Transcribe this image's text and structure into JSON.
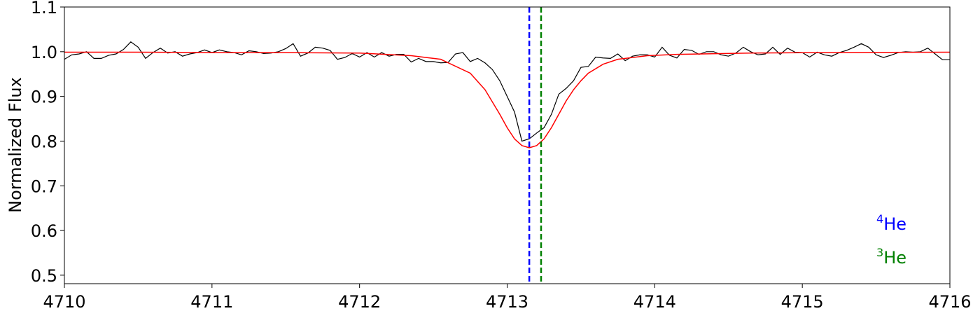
{
  "chart_data": {
    "type": "line",
    "ylabel": "Normalized Flux",
    "xlim": [
      4710,
      4716
    ],
    "ylim": [
      0.481,
      1.1
    ],
    "xticks": [
      4710,
      4711,
      4712,
      4713,
      4714,
      4715,
      4716
    ],
    "yticks": [
      0.5,
      0.6,
      0.7,
      0.8,
      0.9,
      {
        "value": 1,
        "label": "1.0"
      },
      1.1
    ],
    "series": [
      {
        "color": "#000000",
        "x": [
          4710,
          4710.05,
          4710.1,
          4710.15,
          4710.2,
          4710.25,
          4710.3,
          4710.35,
          4710.4,
          4710.45,
          4710.5,
          4710.55,
          4710.6,
          4710.65,
          4710.7,
          4710.75,
          4710.8,
          4710.85,
          4710.9,
          4710.95,
          4711,
          4711.05,
          4711.1,
          4711.15,
          4711.2,
          4711.25,
          4711.3,
          4711.35,
          4711.4,
          4711.45,
          4711.5,
          4711.55,
          4711.6,
          4711.65,
          4711.7,
          4711.75,
          4711.8,
          4711.85,
          4711.9,
          4711.95,
          4712,
          4712.05,
          4712.1,
          4712.15,
          4712.2,
          4712.25,
          4712.3,
          4712.35,
          4712.4,
          4712.45,
          4712.5,
          4712.55,
          4712.6,
          4712.65,
          4712.7,
          4712.75,
          4712.8,
          4712.85,
          4712.9,
          4712.95,
          4713,
          4713.05,
          4713.1,
          4713.15,
          4713.2,
          4713.25,
          4713.3,
          4713.35,
          4713.4,
          4713.45,
          4713.5,
          4713.55,
          4713.6,
          4713.65,
          4713.7,
          4713.75,
          4713.8,
          4713.85,
          4713.9,
          4713.95,
          4714,
          4714.05,
          4714.1,
          4714.15,
          4714.2,
          4714.25,
          4714.3,
          4714.35,
          4714.4,
          4714.45,
          4714.5,
          4714.55,
          4714.6,
          4714.65,
          4714.7,
          4714.75,
          4714.8,
          4714.85,
          4714.9,
          4714.95,
          4715,
          4715.05,
          4715.1,
          4715.15,
          4715.2,
          4715.25,
          4715.3,
          4715.35,
          4715.4,
          4715.45,
          4715.5,
          4715.55,
          4715.6,
          4715.65,
          4715.7,
          4715.75,
          4715.8,
          4715.85,
          4715.9,
          4715.95,
          4716
        ],
        "values": [
          0.983,
          0.993,
          0.995,
          1.0,
          0.985,
          0.985,
          0.992,
          0.995,
          1.005,
          1.022,
          1.01,
          0.985,
          0.998,
          1.008,
          0.997,
          1.0,
          0.99,
          0.995,
          0.998,
          1.004,
          0.998,
          1.004,
          1.0,
          0.998,
          0.993,
          1.002,
          1.0,
          0.996,
          0.997,
          1.0,
          1.007,
          1.018,
          0.99,
          0.997,
          1.01,
          1.008,
          1.003,
          0.983,
          0.987,
          0.996,
          0.988,
          0.998,
          0.988,
          0.998,
          0.99,
          0.994,
          0.994,
          0.977,
          0.985,
          0.978,
          0.978,
          0.975,
          0.976,
          0.995,
          0.998,
          0.978,
          0.985,
          0.975,
          0.96,
          0.935,
          0.9,
          0.865,
          0.8,
          0.805,
          0.818,
          0.83,
          0.86,
          0.905,
          0.918,
          0.935,
          0.965,
          0.967,
          0.988,
          0.986,
          0.985,
          0.995,
          0.98,
          0.99,
          0.993,
          0.993,
          0.988,
          1.01,
          0.992,
          0.986,
          1.005,
          1.003,
          0.994,
          1.0,
          1.0,
          0.993,
          0.99,
          0.997,
          1.01,
          1.0,
          0.993,
          0.995,
          1.01,
          0.994,
          1.008,
          0.999,
          0.998,
          0.988,
          0.999,
          0.993,
          0.99,
          0.998,
          1.003,
          1.01,
          1.018,
          1.01,
          0.993,
          0.987,
          0.992,
          0.998,
          1.0,
          0.999,
          1.0,
          1.008,
          0.995,
          0.982,
          0.982
        ]
      },
      {
        "color": "#ff0000",
        "x": [
          4710,
          4710.5,
          4711,
          4711.5,
          4712,
          4712.35,
          4712.55,
          4712.75,
          4712.85,
          4712.95,
          4713,
          4713.05,
          4713.1,
          4713.15,
          4713.2,
          4713.25,
          4713.3,
          4713.35,
          4713.4,
          4713.45,
          4713.5,
          4713.55,
          4713.65,
          4713.75,
          4713.95,
          4714.15,
          4714.65,
          4715.15,
          4716
        ],
        "values": [
          0.999,
          0.999,
          0.998,
          0.998,
          0.997,
          0.991,
          0.983,
          0.952,
          0.915,
          0.86,
          0.83,
          0.805,
          0.79,
          0.785,
          0.79,
          0.805,
          0.83,
          0.86,
          0.89,
          0.915,
          0.935,
          0.952,
          0.972,
          0.983,
          0.991,
          0.994,
          0.997,
          0.998,
          0.999
        ]
      }
    ],
    "vlines": [
      {
        "x": 4713.15,
        "color": "#0000ff"
      },
      {
        "x": 4713.23,
        "color": "#008000"
      }
    ],
    "annotations": [
      {
        "sup": "4",
        "text": "He",
        "color": "#0000ff"
      },
      {
        "sup": "3",
        "text": "He",
        "color": "#008000"
      }
    ]
  }
}
